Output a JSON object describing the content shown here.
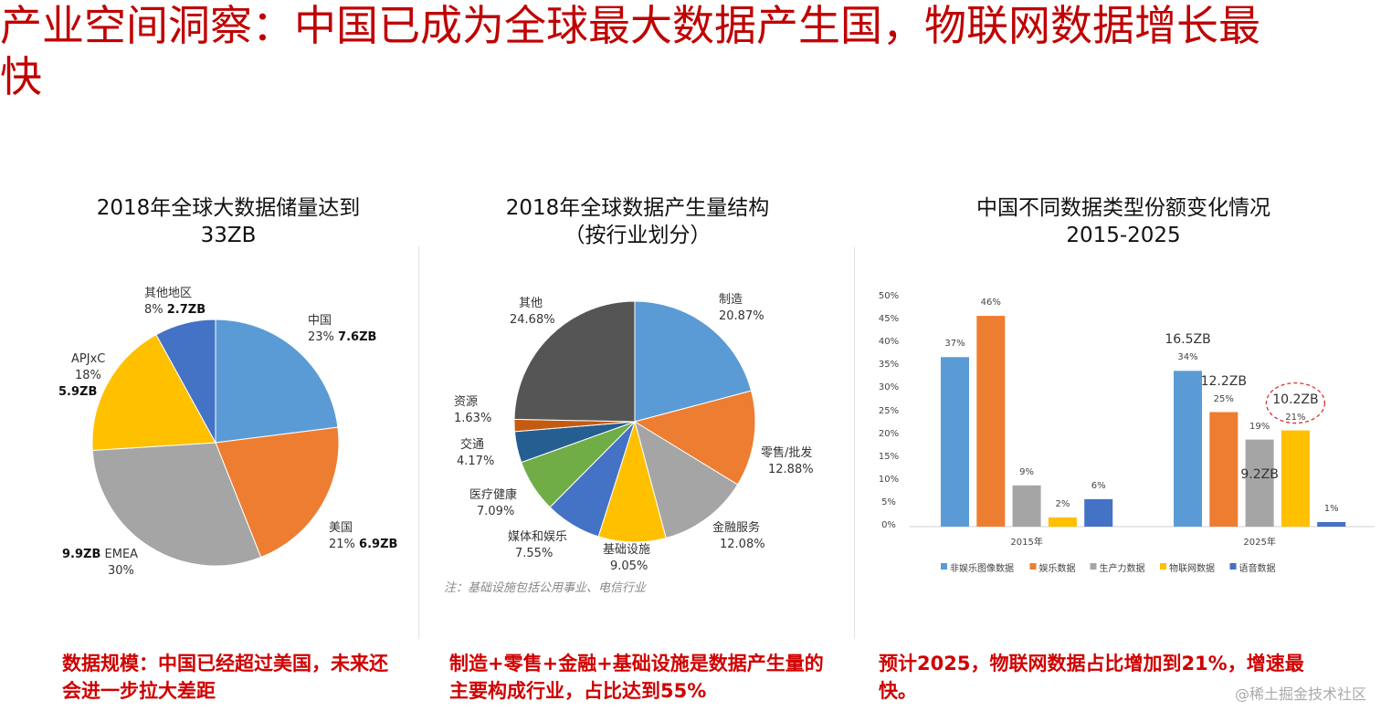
{
  "title": "产业空间洞察：中国已成为全球最大数据产生国，物联网数据增长最快",
  "panels": [
    {
      "title_line1": "2018年全球大数据储量达到",
      "title_line2": "33ZB",
      "note": "数据规模：中国已经超过美国，未来还会进一步拉大差距"
    },
    {
      "title_line1": "2018年全球数据产生量结构",
      "title_line2": "（按行业划分）",
      "footnote": "注：基础设施包括公用事业、电信行业",
      "note": "制造+零售+金融+基础设施是数据产生量的主要构成行业，占比达到55%"
    },
    {
      "title_line1": "中国不同数据类型份额变化情况",
      "title_line2": "2015-2025",
      "note": "预计2025，物联网数据占比增加到21%，增速最快。"
    }
  ],
  "watermark": "@稀土掘金技术社区",
  "chart_data": [
    {
      "type": "pie",
      "title": "2018年全球大数据储量达到33ZB",
      "slices": [
        {
          "label": "中国",
          "percent": "23%",
          "value": 23,
          "amount": "7.6ZB",
          "color": "#5b9bd5"
        },
        {
          "label": "美国",
          "percent": "21%",
          "value": 21,
          "amount": "6.9ZB",
          "color": "#ed7d31"
        },
        {
          "label": "EMEA",
          "percent": "30%",
          "value": 30,
          "amount": "9.9ZB",
          "color": "#a5a5a5"
        },
        {
          "label": "APJxC",
          "percent": "18%",
          "value": 18,
          "amount": "5.9ZB",
          "color": "#ffc000"
        },
        {
          "label": "其他地区",
          "percent": "8%",
          "value": 8,
          "amount": "2.7ZB",
          "color": "#4472c4"
        }
      ]
    },
    {
      "type": "pie",
      "title": "2018年全球数据产生量结构（按行业划分）",
      "slices": [
        {
          "label": "制造",
          "percent": "20.87%",
          "value": 20.87,
          "color": "#5b9bd5"
        },
        {
          "label": "零售/批发",
          "percent": "12.88%",
          "value": 12.88,
          "color": "#ed7d31"
        },
        {
          "label": "金融服务",
          "percent": "12.08%",
          "value": 12.08,
          "color": "#a5a5a5"
        },
        {
          "label": "基础设施",
          "percent": "9.05%",
          "value": 9.05,
          "color": "#ffc000"
        },
        {
          "label": "媒体和娱乐",
          "percent": "7.55%",
          "value": 7.55,
          "color": "#4472c4"
        },
        {
          "label": "医疗健康",
          "percent": "7.09%",
          "value": 7.09,
          "color": "#70ad47"
        },
        {
          "label": "交通",
          "percent": "4.17%",
          "value": 4.17,
          "color": "#255e91"
        },
        {
          "label": "资源",
          "percent": "1.63%",
          "value": 1.63,
          "color": "#c55a11"
        },
        {
          "label": "其他",
          "percent": "24.68%",
          "value": 24.68,
          "color": "#555555"
        }
      ]
    },
    {
      "type": "bar",
      "title": "中国不同数据类型份额变化情况 2015-2025",
      "categories": [
        "2015年",
        "2025年"
      ],
      "ylim": [
        0,
        50
      ],
      "yticks": [
        "0%",
        "5%",
        "10%",
        "15%",
        "20%",
        "25%",
        "30%",
        "35%",
        "40%",
        "45%",
        "50%"
      ],
      "legend": "bottom",
      "series": [
        {
          "name": "非娱乐图像数据",
          "color": "#5b9bd5",
          "values": [
            37,
            34
          ],
          "labels": [
            "37%",
            "34%"
          ],
          "amounts": [
            "",
            "16.5ZB"
          ]
        },
        {
          "name": "娱乐数据",
          "color": "#ed7d31",
          "values": [
            46,
            25
          ],
          "labels": [
            "46%",
            "25%"
          ],
          "amounts": [
            "",
            "12.2ZB"
          ]
        },
        {
          "name": "生产力数据",
          "color": "#a5a5a5",
          "values": [
            9,
            19
          ],
          "labels": [
            "9%",
            "19%"
          ],
          "amounts": [
            "",
            "9.2ZB"
          ]
        },
        {
          "name": "物联网数据",
          "color": "#ffc000",
          "values": [
            2,
            21
          ],
          "labels": [
            "2%",
            "21%"
          ],
          "amounts": [
            "",
            "10.2ZB"
          ]
        },
        {
          "name": "语音数据",
          "color": "#4472c4",
          "values": [
            6,
            1
          ],
          "labels": [
            "6%",
            "1%"
          ],
          "amounts": [
            "",
            ""
          ]
        }
      ],
      "highlight": "10.2ZB"
    }
  ]
}
